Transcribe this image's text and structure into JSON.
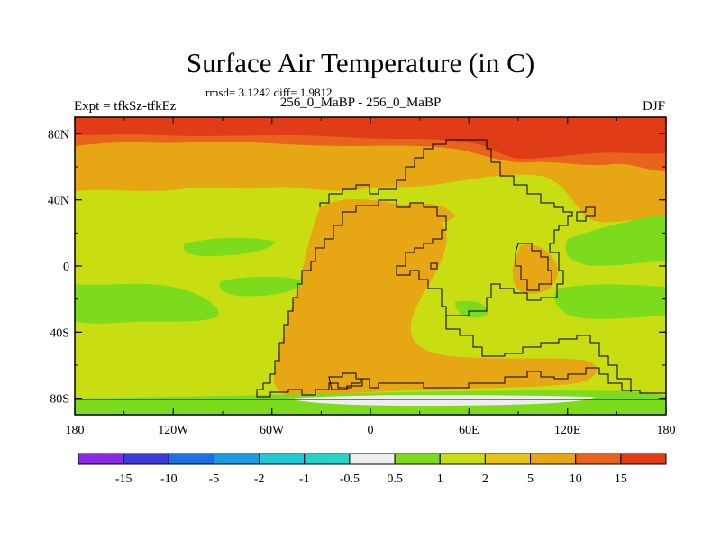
{
  "header": {
    "title": "Surface Air Temperature (in C)",
    "stats": "rmsd= 3.1242 diff= 1.9812",
    "left_label": "Expt = tfkSz-tfkEz",
    "center_label": "256_0_MaBP - 256_0_MaBP",
    "right_label": "DJF"
  },
  "map": {
    "x_ticks": [
      "180",
      "120W",
      "60W",
      "0",
      "60E",
      "120E",
      "180"
    ],
    "y_ticks": [
      "80N",
      "40N",
      "0",
      "40S",
      "80S"
    ],
    "band_colors": {
      "north_polar": "#e13c18",
      "north_transition": "#e8641c",
      "high_lat": "#e7a614",
      "mid_lat": "#c8dd12",
      "low_green": "#7ddb1e",
      "land_orange": "#e7a614",
      "antarctic_white": "#eeeeee"
    }
  },
  "colorbar": {
    "colors": [
      "#8a2be2",
      "#3b3bd6",
      "#1e6fe0",
      "#1e9be0",
      "#1ec8d8",
      "#27d3c8",
      "#eeeeee",
      "#7ddb1e",
      "#c8dd12",
      "#e7c414",
      "#e7a614",
      "#e8641c",
      "#e13c18"
    ],
    "labels": [
      "-15",
      "-10",
      "-5",
      "-2",
      "-1",
      "-0.5",
      "0.5",
      "1",
      "2",
      "5",
      "10",
      "15"
    ]
  }
}
